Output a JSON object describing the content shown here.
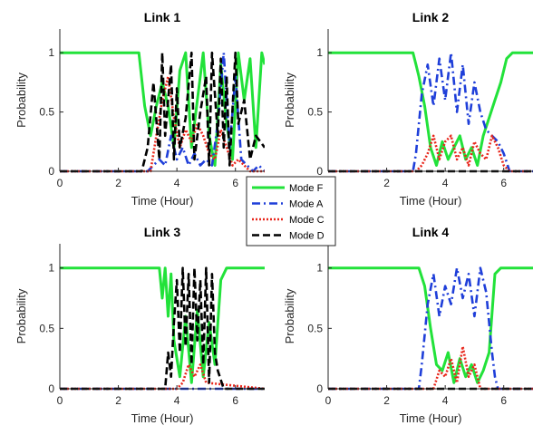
{
  "chart_data": [
    {
      "type": "line",
      "title": "Link 1",
      "xlabel": "Time (Hour)",
      "ylabel": "Probability",
      "xlim": [
        0,
        7
      ],
      "ylim": [
        0,
        1.2
      ],
      "xticks": [
        "0",
        "2",
        "4",
        "6"
      ],
      "yticks": [
        "0",
        "0.5",
        "1"
      ],
      "series": [
        {
          "name": "Mode F",
          "x": [
            0,
            2.7,
            2.9,
            3.1,
            3.3,
            3.5,
            3.7,
            3.9,
            4.1,
            4.3,
            4.5,
            4.7,
            4.9,
            5.1,
            5.3,
            5.5,
            5.7,
            5.9,
            6.1,
            6.3,
            6.5,
            6.7,
            6.9,
            7.0
          ],
          "y": [
            1,
            1,
            0.55,
            0.3,
            0.55,
            0.75,
            0.55,
            0.2,
            0.85,
            1.0,
            0.2,
            0.6,
            1.0,
            0.3,
            0.05,
            0.9,
            0.4,
            0.1,
            1.0,
            0.6,
            0.95,
            0.2,
            1.0,
            0.9
          ]
        },
        {
          "name": "Mode A",
          "x": [
            0,
            3.0,
            3.2,
            3.4,
            3.6,
            3.8,
            4.0,
            4.2,
            4.4,
            4.6,
            4.8,
            5.0,
            5.2,
            5.4,
            5.6,
            5.8,
            6.0,
            6.2,
            6.4,
            6.6,
            6.8,
            7.0
          ],
          "y": [
            0,
            0,
            0.05,
            0.1,
            0.05,
            0.3,
            0.1,
            0.2,
            0.05,
            0.15,
            0.05,
            0.1,
            0.05,
            0.4,
            1.0,
            0.2,
            0.8,
            0.1,
            0.05,
            0.0,
            0.05,
            0.0
          ]
        },
        {
          "name": "Mode C",
          "x": [
            0,
            3.1,
            3.3,
            3.5,
            3.7,
            3.9,
            4.1,
            4.3,
            4.5,
            4.7,
            4.9,
            5.1,
            5.3,
            5.5,
            5.7,
            5.9,
            6.1,
            6.5,
            7.0
          ],
          "y": [
            0,
            0,
            0.3,
            0.6,
            0.8,
            0.45,
            0.2,
            0.35,
            0.25,
            0.4,
            0.3,
            0.15,
            0.1,
            0.35,
            0.2,
            0.05,
            0.1,
            0.0,
            0.0
          ]
        },
        {
          "name": "Mode D",
          "x": [
            0,
            2.8,
            3.0,
            3.2,
            3.4,
            3.5,
            3.6,
            3.8,
            3.9,
            4.0,
            4.1,
            4.3,
            4.5,
            4.6,
            4.8,
            5.0,
            5.1,
            5.2,
            5.4,
            5.5,
            5.6,
            5.7,
            5.8,
            6.0,
            6.1,
            6.3,
            6.5,
            6.7,
            7.0
          ],
          "y": [
            0,
            0,
            0.2,
            0.75,
            0.1,
            1.0,
            0.3,
            0.9,
            0.1,
            0.7,
            0.2,
            0.45,
            1.0,
            0.1,
            0.5,
            0.8,
            0.05,
            1.0,
            0.3,
            0.95,
            0.2,
            0.8,
            0.05,
            1.0,
            0.4,
            0.6,
            0.1,
            0.3,
            0.2
          ]
        }
      ]
    },
    {
      "type": "line",
      "title": "Link 2",
      "xlabel": "Time (Hour)",
      "ylabel": "Probability",
      "xlim": [
        0,
        7
      ],
      "ylim": [
        0,
        1.2
      ],
      "xticks": [
        "0",
        "2",
        "4",
        "6"
      ],
      "yticks": [
        "0",
        "0.5",
        "1"
      ],
      "series": [
        {
          "name": "Mode F",
          "x": [
            0,
            2.9,
            3.0,
            3.1,
            3.3,
            3.5,
            3.7,
            3.9,
            4.1,
            4.3,
            4.5,
            4.7,
            4.9,
            5.1,
            5.3,
            5.5,
            5.7,
            5.9,
            6.1,
            6.3,
            6.5,
            7.0
          ],
          "y": [
            1,
            1,
            0.9,
            0.8,
            0.55,
            0.2,
            0.05,
            0.25,
            0.1,
            0.2,
            0.3,
            0.1,
            0.2,
            0.05,
            0.3,
            0.45,
            0.6,
            0.75,
            0.95,
            1.0,
            1.0,
            1.0
          ]
        },
        {
          "name": "Mode A",
          "x": [
            0,
            2.9,
            3.0,
            3.2,
            3.4,
            3.6,
            3.8,
            4.0,
            4.2,
            4.4,
            4.6,
            4.8,
            5.0,
            5.2,
            5.4,
            5.6,
            5.8,
            6.0,
            6.2,
            7.0
          ],
          "y": [
            0,
            0,
            0.15,
            0.65,
            0.9,
            0.55,
            0.95,
            0.6,
            1.0,
            0.5,
            0.9,
            0.4,
            0.75,
            0.5,
            0.35,
            0.3,
            0.25,
            0.15,
            0.0,
            0.0
          ]
        },
        {
          "name": "Mode C",
          "x": [
            0,
            3.0,
            3.2,
            3.4,
            3.6,
            3.8,
            4.0,
            4.2,
            4.4,
            4.6,
            4.8,
            5.0,
            5.2,
            5.4,
            5.6,
            5.8,
            6.0,
            6.2,
            7.0
          ],
          "y": [
            0,
            0,
            0.05,
            0.15,
            0.3,
            0.1,
            0.25,
            0.3,
            0.1,
            0.2,
            0.05,
            0.25,
            0.15,
            0.1,
            0.3,
            0.2,
            0.05,
            0.0,
            0.0
          ]
        },
        {
          "name": "Mode D",
          "x": [
            0,
            7.0
          ],
          "y": [
            0,
            0
          ]
        }
      ]
    },
    {
      "type": "line",
      "title": "Link 3",
      "xlabel": "Time (Hour)",
      "ylabel": "Probability",
      "xlim": [
        0,
        7
      ],
      "ylim": [
        0,
        1.2
      ],
      "xticks": [
        "0",
        "2",
        "4",
        "6"
      ],
      "yticks": [
        "0",
        "0.5",
        "1"
      ],
      "series": [
        {
          "name": "Mode F",
          "x": [
            0,
            3.4,
            3.5,
            3.6,
            3.7,
            3.8,
            3.9,
            4.1,
            4.3,
            4.5,
            4.7,
            4.9,
            5.1,
            5.3,
            5.5,
            5.7,
            7.0
          ],
          "y": [
            1,
            1,
            0.75,
            1.0,
            0.6,
            0.95,
            0.4,
            0.1,
            0.6,
            0.05,
            0.65,
            0.1,
            0.55,
            0.2,
            0.9,
            1.0,
            1.0
          ]
        },
        {
          "name": "Mode A",
          "x": [
            0,
            7.0
          ],
          "y": [
            0,
            0
          ]
        },
        {
          "name": "Mode C",
          "x": [
            0,
            4.0,
            4.2,
            4.4,
            4.6,
            4.8,
            5.0,
            7.0
          ],
          "y": [
            0,
            0,
            0.05,
            0.2,
            0.1,
            0.2,
            0.05,
            0.0
          ]
        },
        {
          "name": "Mode D",
          "x": [
            0,
            3.6,
            3.7,
            3.8,
            3.9,
            4.0,
            4.1,
            4.2,
            4.3,
            4.4,
            4.5,
            4.6,
            4.7,
            4.8,
            4.9,
            5.0,
            5.1,
            5.2,
            5.3,
            5.4,
            5.6,
            7.0
          ],
          "y": [
            0,
            0,
            0.3,
            0.1,
            0.55,
            0.9,
            0.3,
            1.0,
            0.35,
            0.95,
            0.2,
            1.0,
            0.4,
            0.9,
            0.2,
            1.0,
            0.05,
            0.95,
            0.3,
            0.15,
            0.0,
            0.0
          ]
        }
      ]
    },
    {
      "type": "line",
      "title": "Link 4",
      "xlabel": "Time (Hour)",
      "ylabel": "Probability",
      "xlim": [
        0,
        7
      ],
      "ylim": [
        0,
        1.2
      ],
      "xticks": [
        "0",
        "2",
        "4",
        "6"
      ],
      "yticks": [
        "0",
        "0.5",
        "1"
      ],
      "series": [
        {
          "name": "Mode F",
          "x": [
            0,
            3.1,
            3.3,
            3.5,
            3.7,
            3.9,
            4.1,
            4.3,
            4.5,
            4.7,
            4.9,
            5.1,
            5.3,
            5.5,
            5.7,
            5.9,
            7.0
          ],
          "y": [
            1,
            1,
            0.85,
            0.5,
            0.2,
            0.15,
            0.3,
            0.05,
            0.25,
            0.1,
            0.2,
            0.05,
            0.15,
            0.3,
            0.95,
            1.0,
            1.0
          ]
        },
        {
          "name": "Mode A",
          "x": [
            0,
            3.1,
            3.2,
            3.4,
            3.6,
            3.8,
            4.0,
            4.2,
            4.4,
            4.6,
            4.8,
            5.0,
            5.2,
            5.4,
            5.6,
            5.7,
            5.8,
            7.0
          ],
          "y": [
            0,
            0,
            0.2,
            0.7,
            0.95,
            0.6,
            0.85,
            0.7,
            1.0,
            0.75,
            0.95,
            0.6,
            1.0,
            0.8,
            0.3,
            0.1,
            0.0,
            0.0
          ]
        },
        {
          "name": "Mode C",
          "x": [
            0,
            3.6,
            3.8,
            4.0,
            4.2,
            4.4,
            4.6,
            4.8,
            5.0,
            5.2,
            7.0
          ],
          "y": [
            0,
            0,
            0.15,
            0.1,
            0.25,
            0.05,
            0.35,
            0.1,
            0.2,
            0.0,
            0.0
          ]
        },
        {
          "name": "Mode D",
          "x": [
            0,
            7.0
          ],
          "y": [
            0,
            0
          ]
        }
      ]
    }
  ],
  "legend": {
    "placement": "center",
    "entries": [
      "Mode F",
      "Mode A",
      "Mode C",
      "Mode D"
    ]
  },
  "colors": {
    "Mode F": "#22e23a",
    "Mode A": "#1f3fd9",
    "Mode C": "#e8261b",
    "Mode D": "#000000"
  },
  "dashes": {
    "Mode F": "",
    "Mode A": "9 4 2 4",
    "Mode C": "2 2",
    "Mode D": "8 4"
  }
}
